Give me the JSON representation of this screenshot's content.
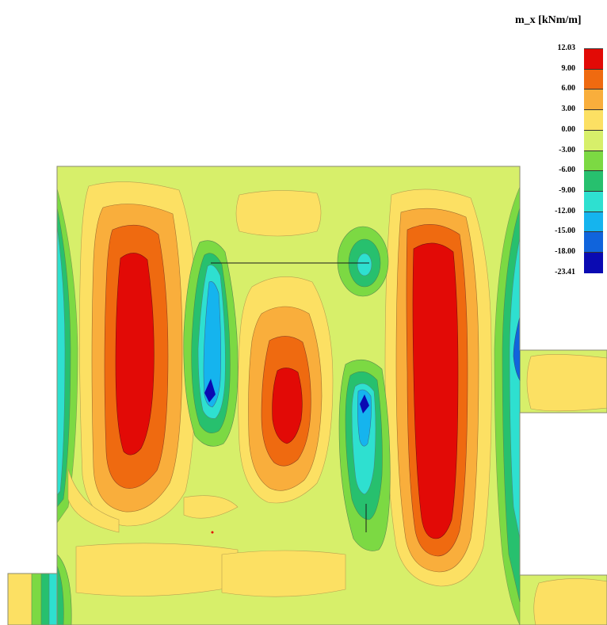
{
  "legend": {
    "title": "m_x [kNm/m]",
    "ticks": [
      "12.03",
      "9.00",
      "6.00",
      "3.00",
      "0.00",
      "-3.00",
      "-6.00",
      "-9.00",
      "-12.00",
      "-15.00",
      "-18.00",
      "-23.41"
    ],
    "colors": [
      "#e20a06",
      "#ef6a10",
      "#f9ae3c",
      "#fce063",
      "#d7ef6a",
      "#7cd943",
      "#27c06e",
      "#2ee0d0",
      "#15b4ee",
      "#1064dc",
      "#0a0ab2"
    ]
  },
  "palette": {
    "red": "#e20a06",
    "orange": "#ef6a10",
    "light_orange": "#f9ae3c",
    "yellow": "#fce063",
    "yellow_green": "#d7ef6a",
    "green": "#7cd943",
    "teal_green": "#27c06e",
    "cyan": "#2ee0d0",
    "light_blue": "#15b4ee",
    "blue": "#1064dc",
    "dark_blue": "#0a0ab2"
  }
}
